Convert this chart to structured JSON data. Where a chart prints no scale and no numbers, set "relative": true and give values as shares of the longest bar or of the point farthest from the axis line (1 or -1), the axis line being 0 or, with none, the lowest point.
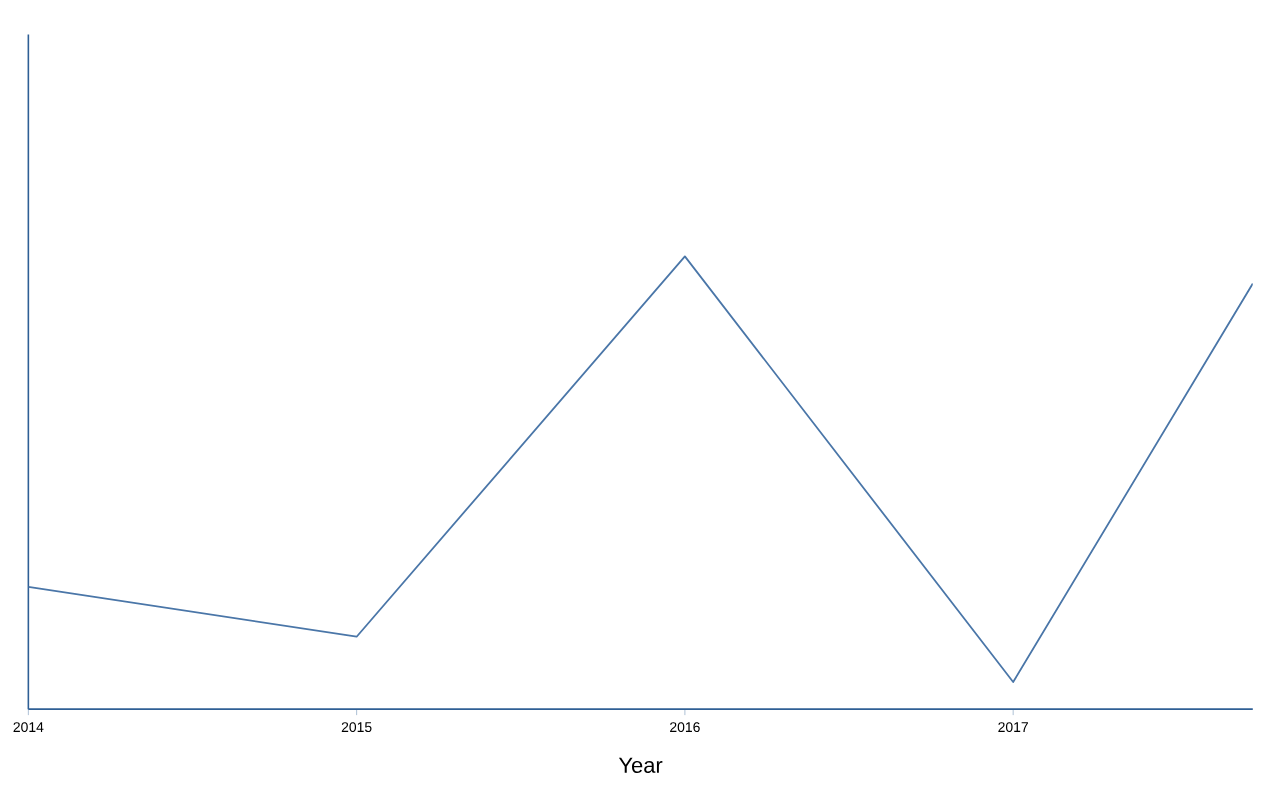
{
  "chart_data": {
    "type": "line",
    "xlabel": "Year",
    "x": [
      2014,
      2015,
      2016,
      2017,
      2017.73
    ],
    "values": [
      0.27,
      0.16,
      1,
      0.06,
      0.94
    ],
    "color": "#4a76a8",
    "relative": true,
    "xlim": [
      2014,
      2017.73
    ],
    "xticks": [
      2014,
      2015,
      2016,
      2017
    ],
    "grid": false,
    "marker": "none",
    "line_style": "solid"
  }
}
